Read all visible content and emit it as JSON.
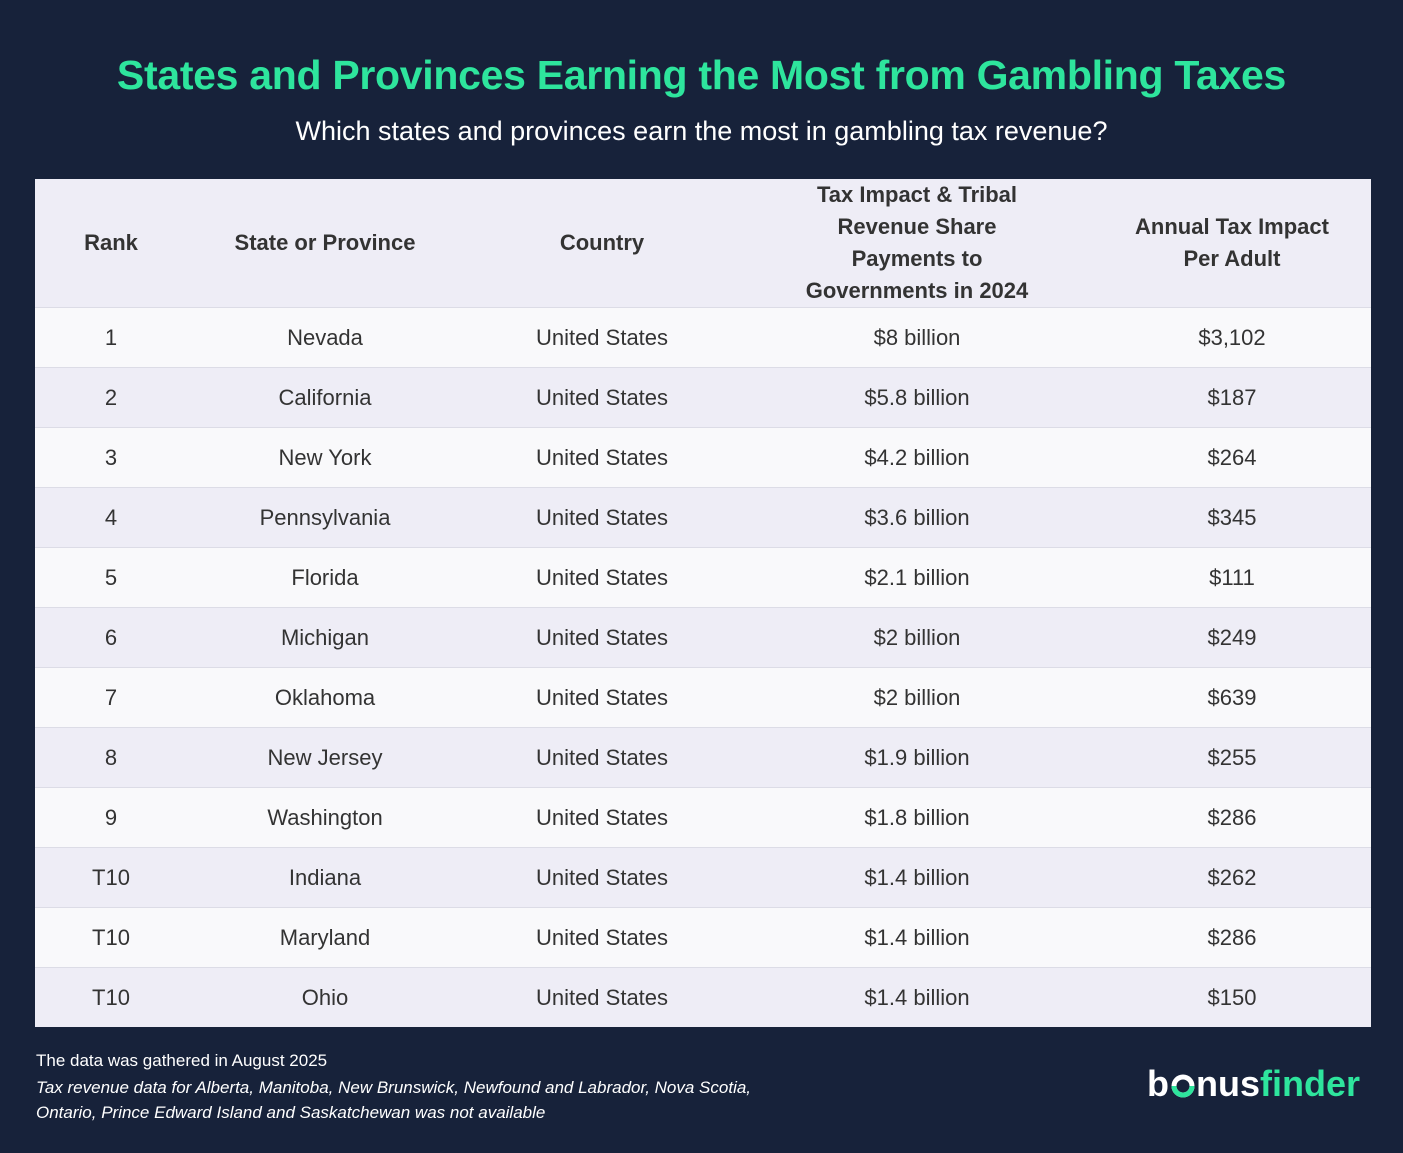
{
  "header": {
    "title": "States and Provinces Earning the Most from Gambling Taxes",
    "subtitle": "Which states and provinces earn the most in gambling tax revenue?"
  },
  "chart_data": {
    "type": "table",
    "columns": [
      "Rank",
      "State or Province",
      "Country",
      "Tax Impact & Tribal Revenue Share Payments to Governments in 2024",
      "Annual Tax Impact Per Adult"
    ],
    "rows": [
      [
        "1",
        "Nevada",
        "United States",
        "$8 billion",
        "$3,102"
      ],
      [
        "2",
        "California",
        "United States",
        "$5.8 billion",
        "$187"
      ],
      [
        "3",
        "New York",
        "United States",
        "$4.2 billion",
        "$264"
      ],
      [
        "4",
        "Pennsylvania",
        "United States",
        "$3.6 billion",
        "$345"
      ],
      [
        "5",
        "Florida",
        "United States",
        "$2.1 billion",
        "$111"
      ],
      [
        "6",
        "Michigan",
        "United States",
        "$2 billion",
        "$249"
      ],
      [
        "7",
        "Oklahoma",
        "United States",
        "$2 billion",
        "$639"
      ],
      [
        "8",
        "New Jersey",
        "United States",
        "$1.9 billion",
        "$255"
      ],
      [
        "9",
        "Washington",
        "United States",
        "$1.8 billion",
        "$286"
      ],
      [
        "T10",
        "Indiana",
        "United States",
        "$1.4 billion",
        "$262"
      ],
      [
        "T10",
        "Maryland",
        "United States",
        "$1.4 billion",
        "$286"
      ],
      [
        "T10",
        "Ohio",
        "United States",
        "$1.4 billion",
        "$150"
      ]
    ]
  },
  "footer": {
    "note": "The data was gathered in August 2025",
    "disclaimer": "Tax revenue data for Alberta, Manitoba, New Brunswick, Newfound and Labrador, Nova Scotia, Ontario, Prince Edward Island and Saskatchewan was not available"
  },
  "logo": {
    "text": "bonus finder",
    "part1": "b",
    "part2": "nus",
    "part3": "finder"
  },
  "colors": {
    "background": "#17223a",
    "accent": "#2ee59d",
    "header_row": "#eeedf6",
    "row_light": "#f9f9fb",
    "row_alt": "#eeedf6"
  }
}
